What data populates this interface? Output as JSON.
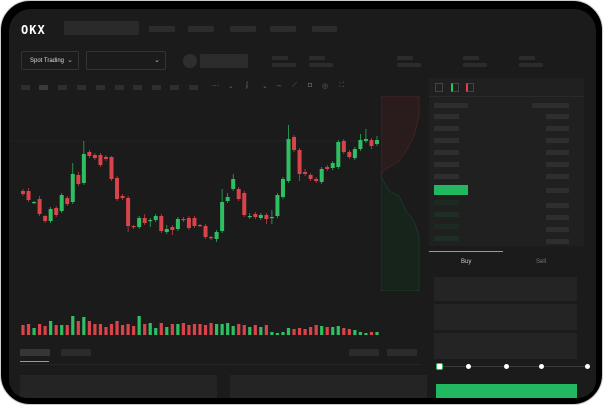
{
  "header": {
    "logo": "OKX"
  },
  "market": {
    "mode_label": "Spot Trading"
  },
  "trade_form": {
    "tabs": [
      "Buy",
      "Sell"
    ],
    "active_tab": "Buy",
    "slider_position_percent": 0,
    "slider_stops": [
      0,
      25,
      50,
      75,
      100
    ]
  },
  "colors": {
    "up": "#2fbf63",
    "down": "#d9444a",
    "background": "#1b1b1b",
    "accent": "#22b861"
  },
  "candles": [
    [
      118,
      120,
      113,
      115
    ],
    [
      118,
      121,
      107,
      109
    ],
    [
      106,
      108,
      105,
      107
    ],
    [
      110,
      113,
      93,
      95
    ],
    [
      93,
      94,
      86,
      88
    ],
    [
      88,
      102,
      86,
      100
    ],
    [
      101,
      103,
      92,
      94
    ],
    [
      98,
      116,
      96,
      114
    ],
    [
      111,
      113,
      103,
      105
    ],
    [
      107,
      146,
      105,
      135
    ],
    [
      134,
      137,
      123,
      125
    ],
    [
      126,
      168,
      124,
      155
    ],
    [
      157,
      159,
      151,
      153
    ],
    [
      154,
      156,
      149,
      151
    ],
    [
      154,
      156,
      142,
      144
    ],
    [
      152,
      154,
      148,
      150
    ],
    [
      152,
      153,
      128,
      130
    ],
    [
      131,
      133,
      108,
      110
    ],
    [
      113,
      115,
      109,
      111
    ],
    [
      111,
      113,
      77,
      83
    ],
    [
      83,
      84,
      80,
      82
    ],
    [
      82,
      93,
      80,
      91
    ],
    [
      91,
      95,
      84,
      86
    ],
    [
      88,
      91,
      82,
      89
    ],
    [
      89,
      95,
      87,
      93
    ],
    [
      93,
      95,
      76,
      78
    ],
    [
      77,
      84,
      75,
      80
    ],
    [
      82,
      84,
      74,
      79
    ],
    [
      80,
      92,
      78,
      90
    ],
    [
      90,
      92,
      87,
      89
    ],
    [
      91,
      93,
      79,
      81
    ],
    [
      91,
      93,
      81,
      83
    ],
    [
      84,
      85,
      82,
      83
    ],
    [
      83,
      85,
      70,
      72
    ],
    [
      72,
      73,
      69,
      71
    ],
    [
      70,
      79,
      67,
      77
    ],
    [
      78,
      120,
      76,
      107
    ],
    [
      108,
      116,
      106,
      112
    ],
    [
      120,
      135,
      118,
      130
    ],
    [
      120,
      122,
      108,
      110
    ],
    [
      116,
      118,
      92,
      94
    ],
    [
      93,
      96,
      90,
      93
    ],
    [
      95,
      97,
      90,
      92
    ],
    [
      91,
      96,
      89,
      94
    ],
    [
      94,
      96,
      85,
      90
    ],
    [
      92,
      99,
      85,
      92
    ],
    [
      93,
      116,
      91,
      114
    ],
    [
      112,
      132,
      110,
      130
    ],
    [
      128,
      184,
      126,
      170
    ],
    [
      172,
      174,
      157,
      159
    ],
    [
      159,
      161,
      128,
      135
    ],
    [
      137,
      140,
      133,
      135
    ],
    [
      134,
      136,
      128,
      130
    ],
    [
      130,
      132,
      126,
      128
    ],
    [
      127,
      142,
      125,
      140
    ],
    [
      142,
      144,
      138,
      140
    ],
    [
      141,
      148,
      139,
      146
    ],
    [
      142,
      169,
      140,
      167
    ],
    [
      168,
      170,
      155,
      157
    ],
    [
      157,
      159,
      150,
      152
    ],
    [
      151,
      162,
      149,
      160
    ],
    [
      160,
      175,
      158,
      169
    ],
    [
      168,
      180,
      166,
      170
    ],
    [
      169,
      171,
      160,
      163
    ],
    [
      165,
      173,
      163,
      169
    ]
  ],
  "volumes": [
    10,
    11,
    7,
    11,
    9,
    14,
    10,
    10,
    10,
    19,
    14,
    18,
    14,
    11,
    11,
    8,
    11,
    14,
    10,
    11,
    9,
    19,
    11,
    12,
    7,
    12,
    8,
    11,
    11,
    12,
    10,
    11,
    11,
    10,
    12,
    11,
    11,
    12,
    9,
    11,
    10,
    8,
    10,
    8,
    10,
    3,
    2,
    3,
    7,
    6,
    7,
    6,
    8,
    10,
    9,
    8,
    8,
    9,
    7,
    6,
    5,
    3,
    2,
    3,
    3
  ]
}
